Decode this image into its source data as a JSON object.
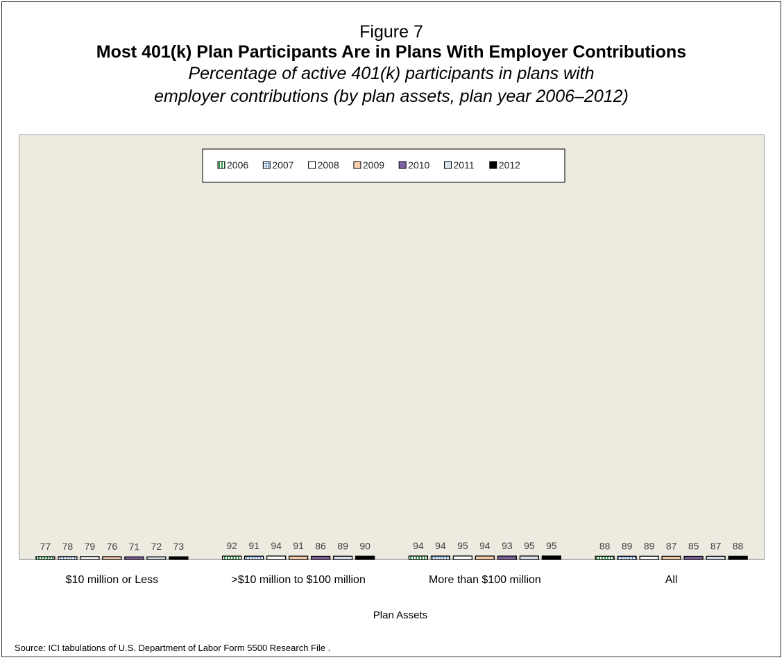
{
  "figure_label": "Figure 7",
  "source_note": "Source: ICI tabulations of U.S. Department of Labor Form 5500 Research File .",
  "chart_data": {
    "type": "bar",
    "title": "Most 401(k) Plan Participants Are in Plans With Employer Contributions",
    "subtitle_lines": [
      "Percentage of active 401(k) participants in plans with",
      "employer contributions (by plan assets, plan year 2006–2012)"
    ],
    "xlabel": "Plan Assets",
    "ylabel": "",
    "ylim": [
      0,
      100
    ],
    "grid": false,
    "legend_position": "top",
    "categories": [
      "$10 million or Less",
      ">$10 million to $100 million",
      "More than $100 million",
      "All"
    ],
    "series": [
      {
        "name": "2006",
        "values": [
          77,
          92,
          94,
          88
        ],
        "color": "#2e9a4a",
        "pattern": "vertical-stripes"
      },
      {
        "name": "2007",
        "values": [
          78,
          91,
          94,
          89
        ],
        "color": "#4f7fc0",
        "pattern": "grid"
      },
      {
        "name": "2008",
        "values": [
          79,
          94,
          95,
          89
        ],
        "color": "#ffffff",
        "pattern": "solid"
      },
      {
        "name": "2009",
        "values": [
          76,
          91,
          94,
          87
        ],
        "color": "#f9cfae",
        "pattern": "solid"
      },
      {
        "name": "2010",
        "values": [
          71,
          86,
          93,
          85
        ],
        "color": "#8063a2",
        "pattern": "solid"
      },
      {
        "name": "2011",
        "values": [
          72,
          89,
          95,
          87
        ],
        "color": "#dae3f0",
        "pattern": "solid"
      },
      {
        "name": "2012",
        "values": [
          73,
          90,
          95,
          88
        ],
        "color": "#000000",
        "pattern": "solid"
      }
    ]
  }
}
